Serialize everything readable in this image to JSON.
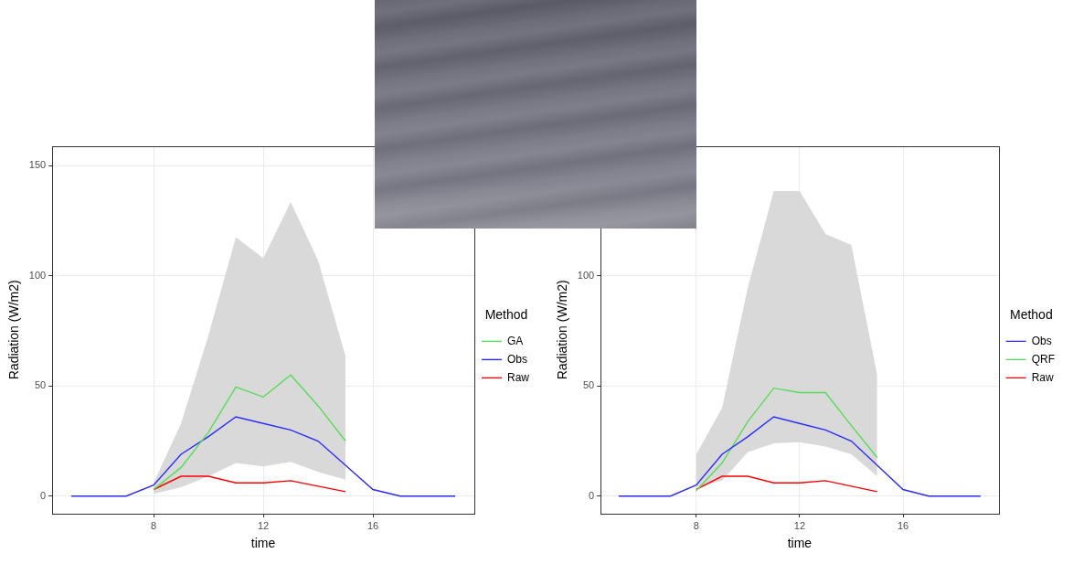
{
  "chart_data": [
    {
      "type": "line",
      "x_label": "time",
      "y_label": "Radiation (W/m2)",
      "x": [
        5,
        6,
        7,
        8,
        9,
        10,
        11,
        12,
        13,
        14,
        15,
        16,
        17,
        18,
        19
      ],
      "xlim": [
        4.3,
        19.7
      ],
      "xticks": [
        8,
        12,
        16
      ],
      "ylim": [
        -8,
        159
      ],
      "yticks": [
        0,
        50,
        100,
        150
      ],
      "grid": true,
      "legend": "right",
      "legend_title": "Method",
      "series": [
        {
          "name": "GA",
          "color": "#55dd55",
          "values": [
            null,
            null,
            null,
            3,
            13,
            29,
            49.5,
            45,
            55,
            41,
            25,
            null,
            null,
            null,
            null
          ]
        },
        {
          "name": "Obs",
          "color": "#2b2bff",
          "values": [
            0,
            0,
            0,
            5,
            19,
            27,
            36,
            33,
            30,
            25,
            14,
            3,
            0,
            0,
            0
          ]
        },
        {
          "name": "Raw",
          "color": "#ff0000",
          "values": [
            null,
            null,
            null,
            3,
            9,
            9,
            6,
            6,
            7,
            4.5,
            2,
            null,
            null,
            null,
            null
          ]
        }
      ],
      "interval": {
        "color": "#d9d9d9",
        "lower": [
          null,
          null,
          null,
          1,
          4,
          9,
          15,
          13.5,
          15.5,
          11,
          7.5,
          null,
          null,
          null,
          null
        ],
        "upper": [
          null,
          null,
          null,
          6,
          33,
          73,
          117.5,
          108,
          133.5,
          107,
          63.5,
          null,
          null,
          null,
          null
        ]
      }
    },
    {
      "type": "line",
      "x_label": "time",
      "y_label": "Radiation (W/m2)",
      "x": [
        5,
        6,
        7,
        8,
        9,
        10,
        11,
        12,
        13,
        14,
        15,
        16,
        17,
        18,
        19
      ],
      "xlim": [
        4.3,
        19.7
      ],
      "xticks": [
        8,
        12,
        16
      ],
      "ylim": [
        -8,
        159
      ],
      "yticks": [
        0,
        50,
        100
      ],
      "grid": true,
      "legend": "right",
      "legend_title": "Method",
      "series": [
        {
          "name": "Obs",
          "color": "#2b2bff",
          "values": [
            0,
            0,
            0,
            5,
            19,
            27,
            36,
            33,
            30,
            25,
            14,
            3,
            0,
            0,
            0
          ]
        },
        {
          "name": "QRF",
          "color": "#55dd55",
          "values": [
            null,
            null,
            null,
            2.5,
            15,
            34,
            49,
            47,
            47,
            32,
            17.5,
            null,
            null,
            null,
            null
          ]
        },
        {
          "name": "Raw",
          "color": "#ff0000",
          "values": [
            null,
            null,
            null,
            3,
            9,
            9,
            6,
            6,
            7,
            4.5,
            2,
            null,
            null,
            null,
            null
          ]
        }
      ],
      "interval": {
        "color": "#d9d9d9",
        "lower": [
          null,
          null,
          null,
          4,
          7,
          20,
          24,
          24.5,
          22.5,
          19,
          9,
          null,
          null,
          null,
          null
        ],
        "upper": [
          null,
          null,
          null,
          19,
          40,
          95,
          138.5,
          138.5,
          119,
          114,
          55,
          null,
          null,
          null,
          null
        ]
      }
    }
  ]
}
